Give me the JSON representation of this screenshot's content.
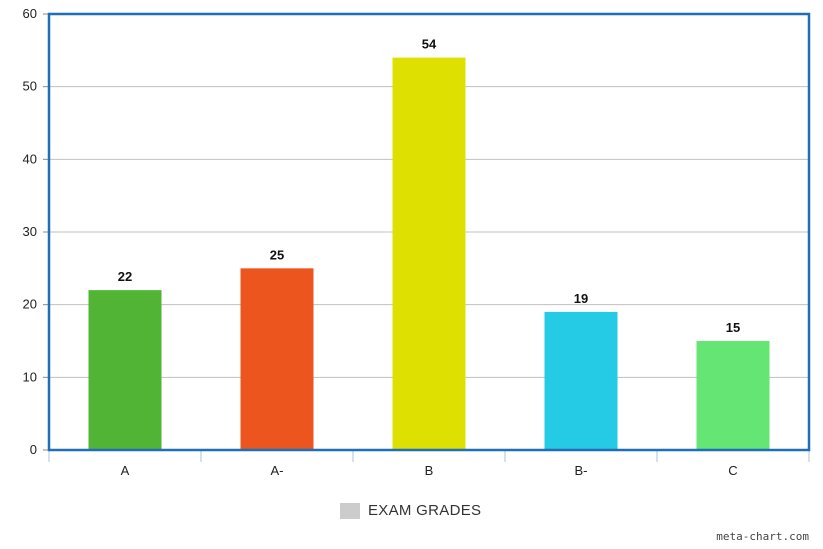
{
  "chart_data": {
    "type": "bar",
    "categories": [
      "A",
      "A-",
      "B",
      "B-",
      "C"
    ],
    "series": [
      {
        "name": "EXAM GRADES",
        "values": [
          22,
          25,
          54,
          19,
          15
        ],
        "colors": [
          "#52b435",
          "#ec561e",
          "#dde000",
          "#25cae4",
          "#64e574"
        ]
      }
    ],
    "ylim": [
      0,
      60
    ],
    "yticks": [
      0,
      10,
      20,
      30,
      40,
      50,
      60
    ],
    "grid": true,
    "legend": "bottom-center",
    "title": "",
    "xlabel": "",
    "ylabel": ""
  },
  "legend": {
    "label": "EXAM GRADES",
    "swatch_color": "#cccccc"
  },
  "watermark": "meta-chart.com",
  "colors": {
    "frame": "#1f6fb8",
    "grid": "#c0c0c0"
  }
}
